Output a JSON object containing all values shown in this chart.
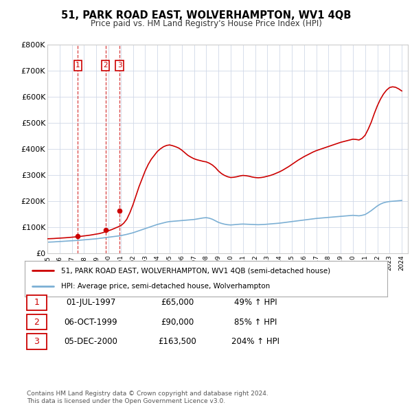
{
  "title": "51, PARK ROAD EAST, WOLVERHAMPTON, WV1 4QB",
  "subtitle": "Price paid vs. HM Land Registry's House Price Index (HPI)",
  "hpi_legend": "HPI: Average price, semi-detached house, Wolverhampton",
  "property_legend": "51, PARK ROAD EAST, WOLVERHAMPTON, WV1 4QB (semi-detached house)",
  "background_color": "#ffffff",
  "grid_color": "#d0d8e8",
  "property_color": "#cc0000",
  "hpi_color": "#7bafd4",
  "purchase_years": [
    1997.5,
    1999.75,
    2000.917
  ],
  "purchase_prices": [
    65000,
    90000,
    163500
  ],
  "purchase_labels": [
    "1",
    "2",
    "3"
  ],
  "table_rows": [
    [
      "1",
      "01-JUL-1997",
      "£65,000",
      "49% ↑ HPI"
    ],
    [
      "2",
      "06-OCT-1999",
      "£90,000",
      "85% ↑ HPI"
    ],
    [
      "3",
      "05-DEC-2000",
      "£163,500",
      "204% ↑ HPI"
    ]
  ],
  "footer": "Contains HM Land Registry data © Crown copyright and database right 2024.\nThis data is licensed under the Open Government Licence v3.0.",
  "ylim": [
    0,
    800000
  ],
  "yticks": [
    0,
    100000,
    200000,
    300000,
    400000,
    500000,
    600000,
    700000,
    800000
  ],
  "ytick_labels": [
    "£0",
    "£100K",
    "£200K",
    "£300K",
    "£400K",
    "£500K",
    "£600K",
    "£700K",
    "£800K"
  ],
  "xlim": [
    1995,
    2024.5
  ],
  "hpi_years": [
    1995.0,
    1995.25,
    1995.5,
    1995.75,
    1996.0,
    1996.25,
    1996.5,
    1996.75,
    1997.0,
    1997.25,
    1997.5,
    1997.75,
    1998.0,
    1998.25,
    1998.5,
    1998.75,
    1999.0,
    1999.25,
    1999.5,
    1999.75,
    2000.0,
    2000.25,
    2000.5,
    2000.75,
    2001.0,
    2001.25,
    2001.5,
    2001.75,
    2002.0,
    2002.25,
    2002.5,
    2002.75,
    2003.0,
    2003.25,
    2003.5,
    2003.75,
    2004.0,
    2004.25,
    2004.5,
    2004.75,
    2005.0,
    2005.25,
    2005.5,
    2005.75,
    2006.0,
    2006.25,
    2006.5,
    2006.75,
    2007.0,
    2007.25,
    2007.5,
    2007.75,
    2008.0,
    2008.25,
    2008.5,
    2008.75,
    2009.0,
    2009.25,
    2009.5,
    2009.75,
    2010.0,
    2010.25,
    2010.5,
    2010.75,
    2011.0,
    2011.25,
    2011.5,
    2011.75,
    2012.0,
    2012.25,
    2012.5,
    2012.75,
    2013.0,
    2013.25,
    2013.5,
    2013.75,
    2014.0,
    2014.25,
    2014.5,
    2014.75,
    2015.0,
    2015.25,
    2015.5,
    2015.75,
    2016.0,
    2016.25,
    2016.5,
    2016.75,
    2017.0,
    2017.25,
    2017.5,
    2017.75,
    2018.0,
    2018.25,
    2018.5,
    2018.75,
    2019.0,
    2019.25,
    2019.5,
    2019.75,
    2020.0,
    2020.25,
    2020.5,
    2020.75,
    2021.0,
    2021.25,
    2021.5,
    2021.75,
    2022.0,
    2022.25,
    2022.5,
    2022.75,
    2023.0,
    2023.25,
    2023.5,
    2023.75,
    2024.0
  ],
  "hpi_values": [
    42000,
    42500,
    43000,
    43800,
    44500,
    45200,
    46000,
    46800,
    47500,
    48200,
    49000,
    50000,
    51000,
    52000,
    53000,
    54000,
    55000,
    56500,
    58000,
    59500,
    61000,
    62500,
    64000,
    65500,
    67000,
    69500,
    72000,
    75000,
    78000,
    82000,
    86000,
    90000,
    94000,
    98000,
    102000,
    106000,
    110000,
    113000,
    116000,
    119000,
    121000,
    122000,
    123000,
    124000,
    125000,
    126000,
    127000,
    128000,
    129000,
    131000,
    133000,
    135000,
    136000,
    134000,
    130000,
    124000,
    118000,
    114000,
    111000,
    109000,
    108000,
    109000,
    110000,
    111000,
    111500,
    111000,
    110500,
    110000,
    109500,
    109000,
    109500,
    110000,
    111000,
    112000,
    113000,
    114000,
    115000,
    116500,
    118000,
    119500,
    121000,
    122500,
    124000,
    125500,
    127000,
    128500,
    130000,
    131500,
    133000,
    134000,
    135000,
    136000,
    137000,
    138000,
    139000,
    140000,
    141000,
    142000,
    143000,
    144000,
    145000,
    144000,
    143000,
    145000,
    148000,
    155000,
    163000,
    172000,
    181000,
    188000,
    193000,
    196000,
    198000,
    199000,
    200000,
    201000,
    202000
  ],
  "prop_years": [
    1995.0,
    1995.25,
    1995.5,
    1995.75,
    1996.0,
    1996.25,
    1996.5,
    1996.75,
    1997.0,
    1997.25,
    1997.5,
    1997.75,
    1998.0,
    1998.25,
    1998.5,
    1998.75,
    1999.0,
    1999.25,
    1999.5,
    1999.75,
    2000.0,
    2000.25,
    2000.5,
    2000.75,
    2001.0,
    2001.25,
    2001.5,
    2001.75,
    2002.0,
    2002.25,
    2002.5,
    2002.75,
    2003.0,
    2003.25,
    2003.5,
    2003.75,
    2004.0,
    2004.25,
    2004.5,
    2004.75,
    2005.0,
    2005.25,
    2005.5,
    2005.75,
    2006.0,
    2006.25,
    2006.5,
    2006.75,
    2007.0,
    2007.25,
    2007.5,
    2007.75,
    2008.0,
    2008.25,
    2008.5,
    2008.75,
    2009.0,
    2009.25,
    2009.5,
    2009.75,
    2010.0,
    2010.25,
    2010.5,
    2010.75,
    2011.0,
    2011.25,
    2011.5,
    2011.75,
    2012.0,
    2012.25,
    2012.5,
    2012.75,
    2013.0,
    2013.25,
    2013.5,
    2013.75,
    2014.0,
    2014.25,
    2014.5,
    2014.75,
    2015.0,
    2015.25,
    2015.5,
    2015.75,
    2016.0,
    2016.25,
    2016.5,
    2016.75,
    2017.0,
    2017.25,
    2017.5,
    2017.75,
    2018.0,
    2018.25,
    2018.5,
    2018.75,
    2019.0,
    2019.25,
    2019.5,
    2019.75,
    2020.0,
    2020.25,
    2020.5,
    2020.75,
    2021.0,
    2021.25,
    2021.5,
    2021.75,
    2022.0,
    2022.25,
    2022.5,
    2022.75,
    2023.0,
    2023.25,
    2023.5,
    2023.75,
    2024.0
  ],
  "prop_values": [
    55000,
    55500,
    56000,
    56800,
    57500,
    58200,
    59000,
    60000,
    61000,
    62000,
    63000,
    64500,
    66000,
    67500,
    69000,
    71000,
    73000,
    75000,
    78000,
    82000,
    86000,
    90000,
    95000,
    100000,
    105000,
    115000,
    130000,
    155000,
    185000,
    220000,
    255000,
    285000,
    315000,
    340000,
    360000,
    375000,
    390000,
    400000,
    408000,
    413000,
    415000,
    412000,
    408000,
    403000,
    395000,
    385000,
    375000,
    368000,
    362000,
    358000,
    355000,
    352000,
    350000,
    345000,
    338000,
    328000,
    315000,
    305000,
    298000,
    293000,
    290000,
    291000,
    293000,
    296000,
    298000,
    297000,
    295000,
    292000,
    290000,
    289000,
    290000,
    292000,
    295000,
    298000,
    302000,
    307000,
    312000,
    318000,
    325000,
    332000,
    340000,
    348000,
    356000,
    363000,
    370000,
    376000,
    382000,
    388000,
    393000,
    397000,
    401000,
    405000,
    409000,
    413000,
    417000,
    421000,
    425000,
    428000,
    431000,
    434000,
    437000,
    436000,
    434000,
    440000,
    452000,
    475000,
    502000,
    535000,
    565000,
    590000,
    610000,
    625000,
    635000,
    638000,
    636000,
    630000,
    622000
  ]
}
